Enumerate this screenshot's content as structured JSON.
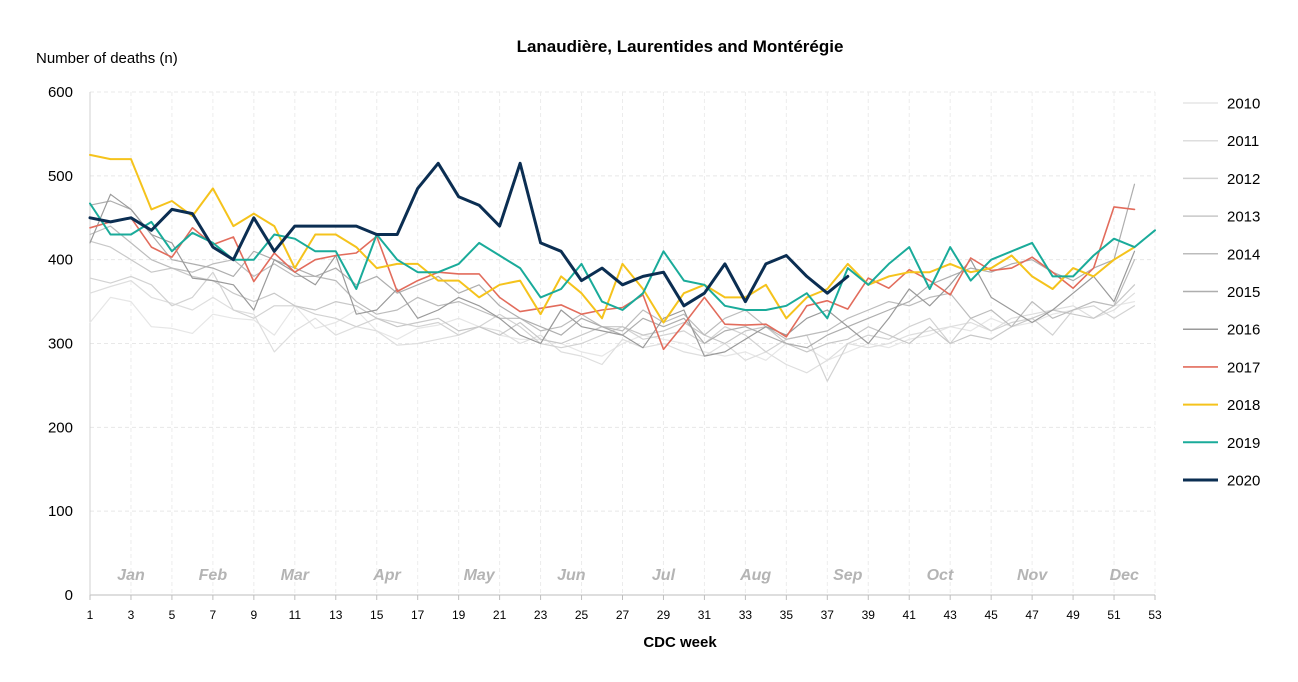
{
  "chart_data": {
    "type": "line",
    "title": "Lanaudière, Laurentides and Montérégie",
    "ylabel": "Number of deaths (n)",
    "xlabel": "CDC week",
    "ylim": [
      0,
      600
    ],
    "xlim": [
      1,
      53
    ],
    "yticks": [
      0,
      100,
      200,
      300,
      400,
      500,
      600
    ],
    "xticks": [
      1,
      3,
      5,
      7,
      9,
      11,
      13,
      15,
      17,
      19,
      21,
      23,
      25,
      27,
      29,
      31,
      33,
      35,
      37,
      39,
      41,
      43,
      45,
      47,
      49,
      51,
      53
    ],
    "months": [
      {
        "label": "Jan",
        "week": 3
      },
      {
        "label": "Feb",
        "week": 7
      },
      {
        "label": "Mar",
        "week": 11
      },
      {
        "label": "Apr",
        "week": 15.5
      },
      {
        "label": "May",
        "week": 20
      },
      {
        "label": "Jun",
        "week": 24.5
      },
      {
        "label": "Jul",
        "week": 29
      },
      {
        "label": "Aug",
        "week": 33.5
      },
      {
        "label": "Sep",
        "week": 38
      },
      {
        "label": "Oct",
        "week": 42.5
      },
      {
        "label": "Nov",
        "week": 47
      },
      {
        "label": "Dec",
        "week": 51.5
      }
    ],
    "grid": true,
    "legend_position": "right",
    "series": [
      {
        "name": "2010",
        "color": "#e6e6e6",
        "width": 1.2,
        "values": [
          325,
          355,
          350,
          320,
          318,
          312,
          335,
          330,
          328,
          310,
          345,
          318,
          325,
          340,
          315,
          305,
          318,
          322,
          330,
          320,
          310,
          305,
          305,
          300,
          290,
          285,
          300,
          310,
          305,
          300,
          290,
          285,
          290,
          280,
          300,
          295,
          280,
          290,
          300,
          295,
          305,
          310,
          320,
          315,
          330,
          320,
          325,
          335,
          340,
          350,
          345,
          350
        ]
      },
      {
        "name": "2011",
        "color": "#dedede",
        "width": 1.2,
        "values": [
          360,
          368,
          375,
          355,
          348,
          340,
          355,
          340,
          335,
          290,
          315,
          330,
          310,
          320,
          315,
          298,
          300,
          305,
          310,
          320,
          315,
          300,
          310,
          290,
          285,
          275,
          305,
          295,
          300,
          290,
          285,
          300,
          280,
          290,
          275,
          265,
          280,
          300,
          295,
          300,
          310,
          315,
          320,
          325,
          315,
          330,
          335,
          340,
          345,
          330,
          340,
          360
        ]
      },
      {
        "name": "2012",
        "color": "#d2d2d2",
        "width": 1.2,
        "values": [
          378,
          372,
          380,
          370,
          345,
          355,
          385,
          340,
          330,
          345,
          345,
          335,
          330,
          320,
          330,
          325,
          320,
          325,
          310,
          320,
          335,
          320,
          300,
          295,
          300,
          310,
          320,
          305,
          310,
          315,
          300,
          320,
          310,
          290,
          305,
          310,
          255,
          300,
          310,
          305,
          320,
          330,
          300,
          330,
          315,
          325,
          330,
          310,
          340,
          345,
          330,
          345
        ]
      },
      {
        "name": "2013",
        "color": "#c8c8c8",
        "width": 1.2,
        "values": [
          422,
          415,
          400,
          385,
          390,
          380,
          375,
          360,
          350,
          360,
          345,
          340,
          350,
          345,
          330,
          320,
          325,
          330,
          315,
          320,
          310,
          325,
          305,
          300,
          310,
          320,
          320,
          310,
          315,
          325,
          310,
          300,
          315,
          320,
          300,
          290,
          300,
          305,
          320,
          310,
          300,
          320,
          300,
          310,
          305,
          320,
          330,
          340,
          335,
          330,
          345,
          370
        ]
      },
      {
        "name": "2014",
        "color": "#bcbcbc",
        "width": 1.2,
        "values": [
          430,
          440,
          420,
          400,
          390,
          385,
          395,
          400,
          380,
          395,
          380,
          380,
          375,
          350,
          335,
          340,
          355,
          345,
          350,
          340,
          330,
          330,
          315,
          320,
          335,
          320,
          315,
          340,
          325,
          335,
          310,
          330,
          340,
          320,
          305,
          310,
          315,
          330,
          340,
          350,
          345,
          355,
          360,
          330,
          340,
          320,
          350,
          330,
          340,
          350,
          345,
          400
        ]
      },
      {
        "name": "2015",
        "color": "#aeaeae",
        "width": 1.2,
        "values": [
          465,
          470,
          460,
          430,
          400,
          395,
          390,
          380,
          410,
          400,
          390,
          380,
          390,
          370,
          380,
          360,
          370,
          380,
          360,
          370,
          345,
          330,
          320,
          310,
          330,
          320,
          310,
          330,
          320,
          330,
          300,
          315,
          320,
          310,
          300,
          295,
          310,
          320,
          330,
          340,
          350,
          370,
          380,
          390,
          385,
          395,
          400,
          385,
          375,
          390,
          400,
          490
        ]
      },
      {
        "name": "2016",
        "color": "#9a9a9a",
        "width": 1.2,
        "values": [
          420,
          478,
          460,
          430,
          420,
          378,
          375,
          370,
          340,
          400,
          385,
          370,
          405,
          335,
          340,
          365,
          330,
          340,
          355,
          345,
          330,
          310,
          300,
          340,
          320,
          315,
          310,
          295,
          330,
          340,
          285,
          290,
          305,
          320,
          310,
          330,
          340,
          320,
          300,
          330,
          365,
          345,
          370,
          400,
          355,
          340,
          325,
          340,
          360,
          380,
          350,
          410
        ]
      },
      {
        "name": "2017",
        "color": "#e26c5c",
        "width": 1.6,
        "values": [
          438,
          445,
          450,
          415,
          403,
          438,
          418,
          427,
          374,
          408,
          385,
          400,
          405,
          408,
          428,
          362,
          375,
          385,
          383,
          383,
          355,
          338,
          342,
          346,
          335,
          340,
          343,
          358,
          293,
          323,
          355,
          323,
          322,
          323,
          308,
          345,
          351,
          341,
          378,
          366,
          388,
          375,
          358,
          402,
          387,
          390,
          403,
          385,
          366,
          390,
          463,
          460
        ]
      },
      {
        "name": "2018",
        "color": "#f5c31c",
        "width": 2,
        "values": [
          525,
          520,
          520,
          460,
          470,
          452,
          485,
          440,
          455,
          440,
          390,
          430,
          430,
          415,
          390,
          395,
          395,
          375,
          375,
          355,
          370,
          375,
          335,
          380,
          360,
          330,
          395,
          365,
          325,
          360,
          370,
          355,
          355,
          370,
          330,
          355,
          365,
          395,
          370,
          380,
          385,
          385,
          395,
          385,
          390,
          405,
          380,
          365,
          390,
          380,
          400,
          415
        ]
      },
      {
        "name": "2019",
        "color": "#1aab9a",
        "width": 2,
        "values": [
          467,
          430,
          430,
          445,
          410,
          432,
          420,
          400,
          400,
          430,
          425,
          410,
          410,
          365,
          430,
          400,
          385,
          385,
          395,
          420,
          405,
          390,
          355,
          365,
          395,
          350,
          340,
          360,
          410,
          375,
          370,
          345,
          340,
          340,
          345,
          360,
          330,
          390,
          370,
          395,
          415,
          365,
          415,
          375,
          400,
          410,
          420,
          380,
          380,
          405,
          425,
          415,
          435
        ]
      },
      {
        "name": "2020",
        "color": "#0b2e52",
        "width": 3,
        "values": [
          450,
          445,
          450,
          435,
          460,
          455,
          415,
          400,
          450,
          410,
          440,
          440,
          440,
          440,
          430,
          430,
          485,
          515,
          475,
          465,
          440,
          515,
          420,
          410,
          375,
          390,
          370,
          380,
          385,
          345,
          360,
          395,
          350,
          395,
          405,
          380,
          360,
          380
        ]
      }
    ]
  }
}
